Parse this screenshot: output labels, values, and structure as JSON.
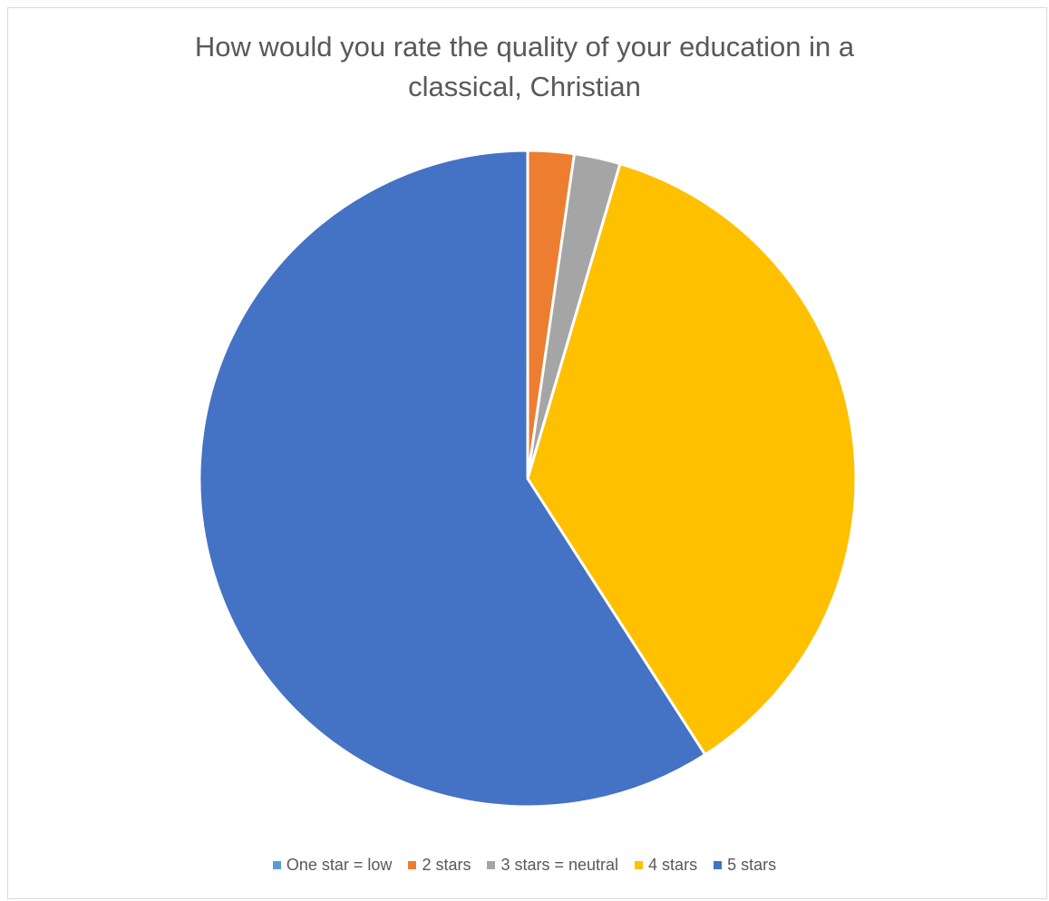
{
  "chart_data": {
    "type": "pie",
    "title_lines": [
      "How would you rate the quality of your education in a",
      "classical, Christian"
    ],
    "categories": [
      "One star = low",
      "2 stars",
      "3 stars = neutral",
      "4 stars",
      "5 stars"
    ],
    "values": [
      0,
      1,
      1,
      16,
      26
    ],
    "colors": [
      "#5B9BD5",
      "#ED7D31",
      "#A5A5A5",
      "#FFC000",
      "#4472C4"
    ],
    "legend_position": "bottom"
  }
}
